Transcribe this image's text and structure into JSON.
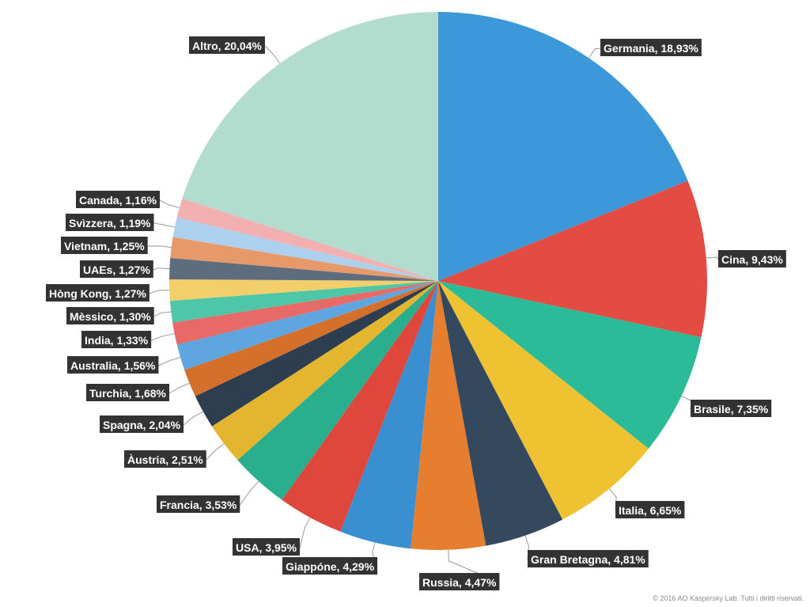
{
  "chart_data": {
    "type": "pie",
    "title": "",
    "unit": "%",
    "categories": [
      "Germania",
      "Cina",
      "Brasile",
      "Italia",
      "Gran Bretagna",
      "Russia",
      "Giappóne",
      "USA",
      "Francia",
      "Àustria",
      "Spagna",
      "Turchia",
      "Australia",
      "India",
      "Mèssico",
      "Hòng Kong",
      "UAEs",
      "Vietnam",
      "Svìzzera",
      "Canada",
      "Altro"
    ],
    "values": [
      18.93,
      9.43,
      7.35,
      6.65,
      4.81,
      4.47,
      4.29,
      3.95,
      3.53,
      2.51,
      2.04,
      1.68,
      1.56,
      1.33,
      1.3,
      1.27,
      1.27,
      1.25,
      1.19,
      1.16,
      20.04
    ],
    "labels": [
      "Germania, 18,93%",
      "Cina, 9,43%",
      "Brasile, 7,35%",
      "Italia, 6,65%",
      "Gran Bretagna, 4,81%",
      "Russia, 4,47%",
      "Giappóne, 4,29%",
      "USA, 3,95%",
      "Francia, 3,53%",
      "Àustria, 2,51%",
      "Spagna, 2,04%",
      "Turchia, 1,68%",
      "Australia, 1,56%",
      "India, 1,33%",
      "Mèssico, 1,30%",
      "Hòng Kong, 1,27%",
      "UAEs, 1,27%",
      "Vietnam, 1,25%",
      "Svìzzera, 1,19%",
      "Canada, 1,16%",
      "Altro, 20,04%"
    ],
    "colors": [
      "#3c98d8",
      "#e24c43",
      "#2bbb99",
      "#efc232",
      "#34495e",
      "#e67e30",
      "#3a8fd0",
      "#dd473c",
      "#2aaf8e",
      "#e4b52f",
      "#2c3e50",
      "#d4702a",
      "#5fa5df",
      "#e86a66",
      "#4dc7a8",
      "#f2cf6a",
      "#5d6d7e",
      "#e8996a",
      "#aed0ef",
      "#f2b0b0",
      "#b2dccd"
    ],
    "start_angle_deg": 0,
    "direction": "clockwise"
  },
  "footer": {
    "copyright": "© 2016 AO Kaspersky Lab. Tutti i diritti riservati."
  }
}
